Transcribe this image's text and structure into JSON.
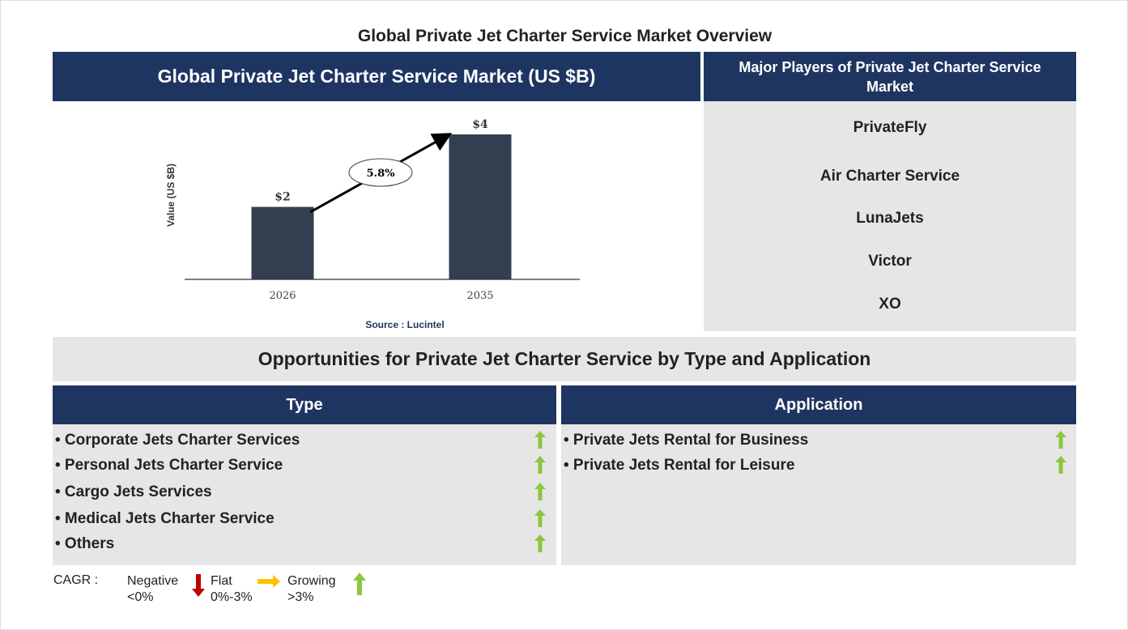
{
  "title": "Global Private Jet Charter Service Market Overview",
  "market_panel": {
    "header": "Global Private Jet Charter Service Market (US $B)",
    "source": "Source : Lucintel"
  },
  "chart_data": {
    "type": "bar",
    "categories": [
      "2026",
      "2035"
    ],
    "values": [
      2,
      4
    ],
    "data_labels": [
      "$2",
      "$4"
    ],
    "ylabel": "Value (US $B)",
    "ylim": [
      0,
      4
    ],
    "annotation": "5.8%",
    "bar_color": "#333f50",
    "grid": false
  },
  "players": {
    "header": "Major Players of Private Jet Charter Service Market",
    "items": [
      "PrivateFly",
      "Air Charter Service",
      "LunaJets",
      "Victor",
      "XO"
    ]
  },
  "opportunities": {
    "header": "Opportunities for Private Jet Charter Service by Type and Application",
    "type": {
      "header": "Type",
      "items": [
        {
          "label": "• Corporate Jets Charter Services",
          "trend": "growing"
        },
        {
          "label": "• Personal Jets Charter Service",
          "trend": "growing"
        },
        {
          "label": "• Cargo Jets Services",
          "trend": "growing"
        },
        {
          "label": "• Medical Jets Charter Service",
          "trend": "growing"
        },
        {
          "label": "• Others",
          "trend": "growing"
        }
      ]
    },
    "application": {
      "header": "Application",
      "items": [
        {
          "label": "• Private Jets Rental for Business",
          "trend": "growing"
        },
        {
          "label": "• Private Jets Rental for Leisure",
          "trend": "growing"
        }
      ]
    }
  },
  "legend": {
    "label": "CAGR :",
    "negative": "Negative",
    "negative_range": "<0%",
    "flat": "Flat",
    "flat_range": "0%-3%",
    "growing": "Growing",
    "growing_range": ">3%"
  },
  "colors": {
    "navy": "#1f3561",
    "growing": "#8dc63f",
    "flat": "#ffc000",
    "negative": "#c00000"
  }
}
